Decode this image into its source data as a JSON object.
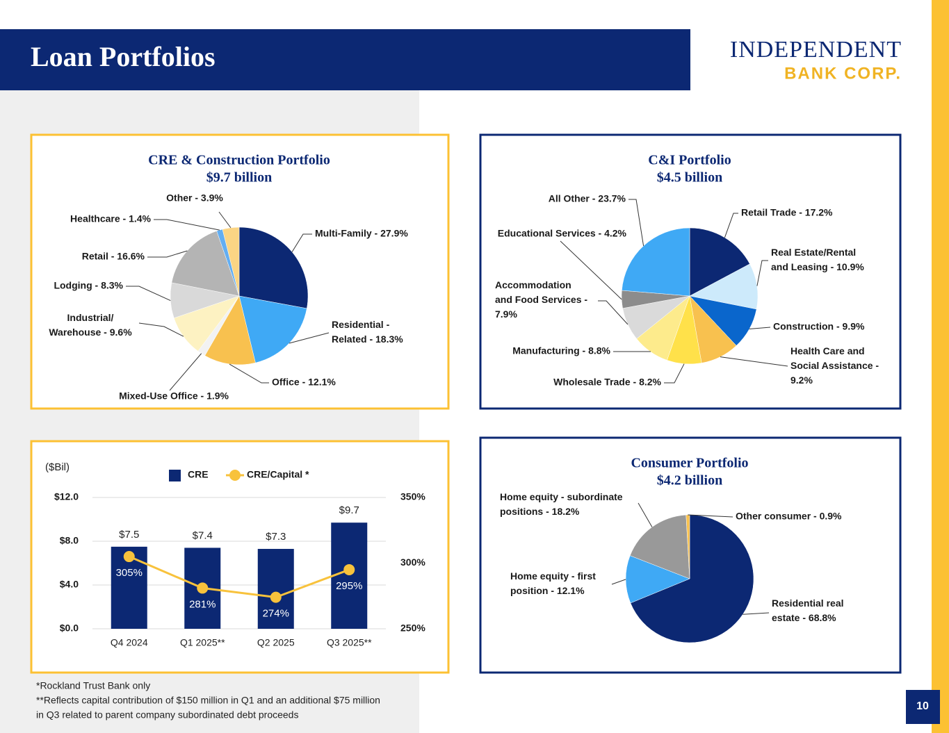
{
  "header": {
    "title": "Loan Portfolios",
    "logo_line1": "INDEPENDENT",
    "logo_line2": "BANK CORP."
  },
  "chart_data": [
    {
      "type": "pie",
      "title": "CRE & Construction Portfolio",
      "subtitle": "$9.7 billion",
      "values": [
        27.9,
        18.3,
        12.1,
        1.9,
        9.6,
        8.3,
        16.6,
        1.4,
        3.9
      ],
      "value_labels": [
        "Multi-Family - 27.9%",
        "Residential -\nRelated - 18.3%",
        "Office - 12.1%",
        "Mixed-Use Office - 1.9%",
        "Industrial/\nWarehouse - 9.6%",
        "Lodging - 8.3%",
        "Retail - 16.6%",
        "Healthcare - 1.4%",
        "Other - 3.9%"
      ],
      "colors": [
        "#0c2873",
        "#3fa9f5",
        "#f8c14f",
        "#f2f2f2",
        "#fdf2c2",
        "#d9d9d9",
        "#b4b4b4",
        "#63aef2",
        "#fbd584"
      ]
    },
    {
      "type": "pie",
      "title": "C&I Portfolio",
      "subtitle": "$4.5 billion",
      "values": [
        17.2,
        10.9,
        9.9,
        9.2,
        8.2,
        8.8,
        7.9,
        4.2,
        23.7
      ],
      "value_labels": [
        "Retail Trade - 17.2%",
        "Real Estate/Rental\nand Leasing - 10.9%",
        "Construction - 9.9%",
        "Health Care and\nSocial Assistance -\n9.2%",
        "Wholesale Trade - 8.2%",
        "Manufacturing - 8.8%",
        "Accommodation\nand Food Services -\n7.9%",
        "Educational Services - 4.2%",
        "All Other  - 23.7%"
      ],
      "colors": [
        "#0c2873",
        "#cdeafb",
        "#0a66cc",
        "#f8c14f",
        "#ffe14a",
        "#fdeb8c",
        "#dadada",
        "#8c8c8c",
        "#3fa9f5"
      ]
    },
    {
      "type": "bar",
      "ylabel": "($Bil)",
      "categories": [
        "Q4 2024",
        "Q1 2025**",
        "Q2 2025",
        "Q3 2025**"
      ],
      "series": [
        {
          "name": "CRE",
          "color": "#0c2873",
          "values": [
            7.5,
            7.4,
            7.3,
            9.7
          ],
          "value_labels": [
            "$7.5",
            "$7.4",
            "$7.3",
            "$9.7"
          ]
        },
        {
          "name": "CRE/Capital *",
          "type": "line",
          "axis": "y2",
          "color": "#f8c23c",
          "values": [
            305,
            281,
            274,
            295
          ],
          "value_labels": [
            "305%",
            "281%",
            "274%",
            "295%"
          ]
        }
      ],
      "ylim": [
        0,
        12
      ],
      "yticks": [
        {
          "value": 0,
          "label": "$0.0"
        },
        {
          "value": 4,
          "label": "$4.0"
        },
        {
          "value": 8,
          "label": "$8.0"
        },
        {
          "value": 12,
          "label": "$12.0"
        }
      ],
      "y2lim": [
        250,
        350
      ],
      "y2ticks": [
        {
          "value": 250,
          "label": "250%"
        },
        {
          "value": 300,
          "label": "300%"
        },
        {
          "value": 350,
          "label": "350%"
        }
      ],
      "grid": true,
      "legend": "top"
    },
    {
      "type": "pie",
      "title": "Consumer Portfolio",
      "subtitle": "$4.2 billion",
      "values": [
        68.8,
        12.1,
        18.2,
        0.9
      ],
      "value_labels": [
        "Residential real\nestate - 68.8%",
        "Home equity - first\nposition - 12.1%",
        "Home equity - subordinate\npositions - 18.2%",
        "Other consumer - 0.9%"
      ],
      "colors": [
        "#0c2873",
        "#3fa9f5",
        "#999999",
        "#f8c14f"
      ]
    }
  ],
  "footnotes": [
    "*Rockland Trust Bank only",
    "**Reflects capital contribution of $150 million in Q1 and an additional $75 million",
    "in Q3 related to parent company subordinated debt proceeds"
  ],
  "page_number": "10"
}
